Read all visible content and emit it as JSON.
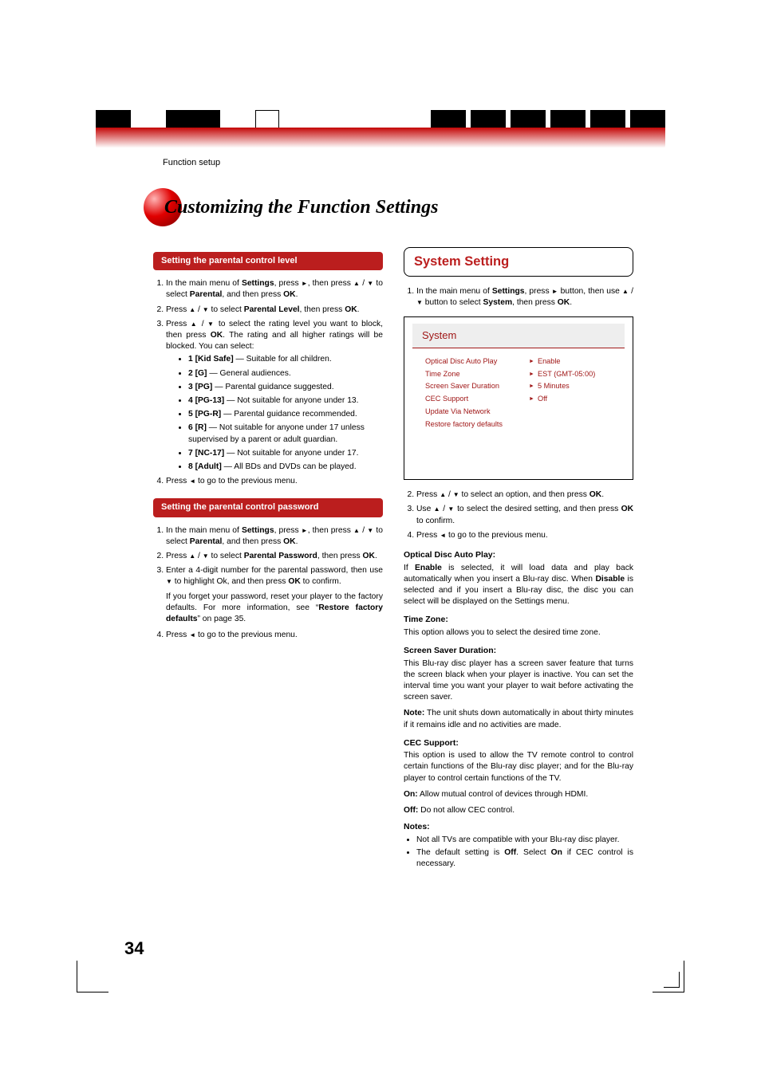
{
  "colors": {
    "brand_red": "#bb1e1e",
    "osd_red": "#a01818",
    "osd_grey": "#eeeeee",
    "text": "#000000",
    "bg": "#ffffff",
    "gradient_top": "#c40606",
    "sphere_light": "#ffb5b5",
    "sphere_mid": "#e00000",
    "sphere_dark": "#7b0000"
  },
  "typography": {
    "body_family": "Arial, Helvetica, sans-serif",
    "title_family": "Times New Roman, serif",
    "body_size_pt": 10.3,
    "title_size_pt": 24,
    "osd_size_pt": 9.2,
    "pill_size_pt": 11,
    "frame_heading_size_pt": 16.5
  },
  "header": {
    "breadcrumb": "Function setup",
    "chapter_title": "Customizing the Function Settings"
  },
  "left": {
    "pill1": "Setting the parental control level",
    "s1": "In the main menu of <b>Settings</b>, press <span class='glyph-right'></span>, then press <span class='glyph-up'></span> / <span class='glyph-down'></span> to select <b>Parental</b>, and then press <b>OK</b>.",
    "s2": "Press <span class='glyph-up'></span> / <span class='glyph-down'></span> to select <b>Parental Level</b>, then press <b>OK</b>.",
    "s3": "Press <span class='glyph-up'></span> / <span class='glyph-down'></span> to select the rating level you want to block, then press <b>OK</b>. The rating and all higher ratings will be blocked. You can select:",
    "ratings": [
      "<b>1 [Kid Safe]</b> — Suitable for all children.",
      "<b>2 [G]</b> — General audiences.",
      "<b>3 [PG]</b> — Parental guidance suggested.",
      "<b>4 [PG-13]</b> — Not suitable for anyone under 13.",
      "<b>5 [PG-R]</b> — Parental guidance recommended.",
      "<b>6 [R]</b> — Not suitable for anyone under 17 unless supervised by a parent or adult guardian.",
      "<b>7 [NC-17]</b> — Not suitable for anyone under 17.",
      "<b>8 [Adult]</b> — All BDs and DVDs can be played."
    ],
    "s4": "Press <span class='glyph-left'></span> to go to the previous menu.",
    "pill2": "Setting the parental control password",
    "p1": "In the main menu of <b>Settings</b>, press <span class='glyph-right'></span>, then press <span class='glyph-up'></span> / <span class='glyph-down'></span> to select <b>Parental</b>, and then press <b>OK</b>.",
    "p2": "Press <span class='glyph-up'></span> / <span class='glyph-down'></span> to select <b>Parental Password</b>, then press <b>OK</b>.",
    "p3": "Enter a 4-digit number for the parental password, then use <span class='glyph-down'></span> to highlight Ok, and then press <b>OK</b> to confirm.",
    "p3b": "If you forget your password, reset your player to the factory defaults. For more information, see “<b>Restore factory defaults</b>” on page 35.",
    "p4": "Press <span class='glyph-left'></span> to go to the previous menu."
  },
  "right": {
    "frame_title": "System Setting",
    "r1": "In the main menu of <b>Settings</b>, press <span class='glyph-right'></span> button, then use <span class='glyph-up'></span> / <span class='glyph-down'></span> button to select <b>System</b>, then press <b>OK</b>.",
    "osd": {
      "title": "System",
      "rows": [
        {
          "label": "Optical Disc Auto Play",
          "value": "Enable"
        },
        {
          "label": "Time Zone",
          "value": "EST (GMT-05:00)"
        },
        {
          "label": "Screen Saver Duration",
          "value": "5 Minutes"
        },
        {
          "label": "CEC Support",
          "value": "Off"
        },
        {
          "label": "Update Via Network",
          "value": ""
        },
        {
          "label": "Restore factory defaults",
          "value": ""
        }
      ]
    },
    "r2": "Press <span class='glyph-up'></span> / <span class='glyph-down'></span> to select an option, and then press <b>OK</b>.",
    "r3": "Use <span class='glyph-up'></span> / <span class='glyph-down'></span> to select the desired setting, and then press <b>OK</b> to confirm.",
    "r4": "Press <span class='glyph-left'></span> to go to the previous menu.",
    "odap_h": "Optical Disc Auto Play:",
    "odap_t": "If <b>Enable</b> is selected, it will load data and play back automatically when you insert a Blu-ray disc. When <b>Disable</b> is selected and if you insert a Blu-ray disc, the disc you can select will be displayed on the Settings menu.",
    "tz_h": "Time Zone:",
    "tz_t": "This option allows you to select the desired time zone.",
    "ssd_h": "Screen Saver Duration:",
    "ssd_t": "This Blu-ray disc player has a screen saver feature that turns the screen black when your player is inactive. You can set the interval time you want your player to wait before activating the screen saver.",
    "ssd_n": "<b>Note:</b> The unit shuts down automatically in about thirty minutes if it remains idle and no activities are made.",
    "cec_h": "CEC Support:",
    "cec_t": "This option is used to allow the TV remote control to control certain functions of the Blu-ray disc player; and for the Blu-ray player to control certain functions of the TV.",
    "cec_on": "<b>On:</b> Allow mutual control of devices through HDMI.",
    "cec_off": "<b>Off:</b> Do not allow CEC control.",
    "notes_h": "Notes:",
    "notes": [
      "Not all TVs are compatible with your Blu-ray disc player.",
      "The default setting is <b>Off</b>. Select <b>On</b> if CEC control is necessary."
    ]
  },
  "page_number": "34"
}
